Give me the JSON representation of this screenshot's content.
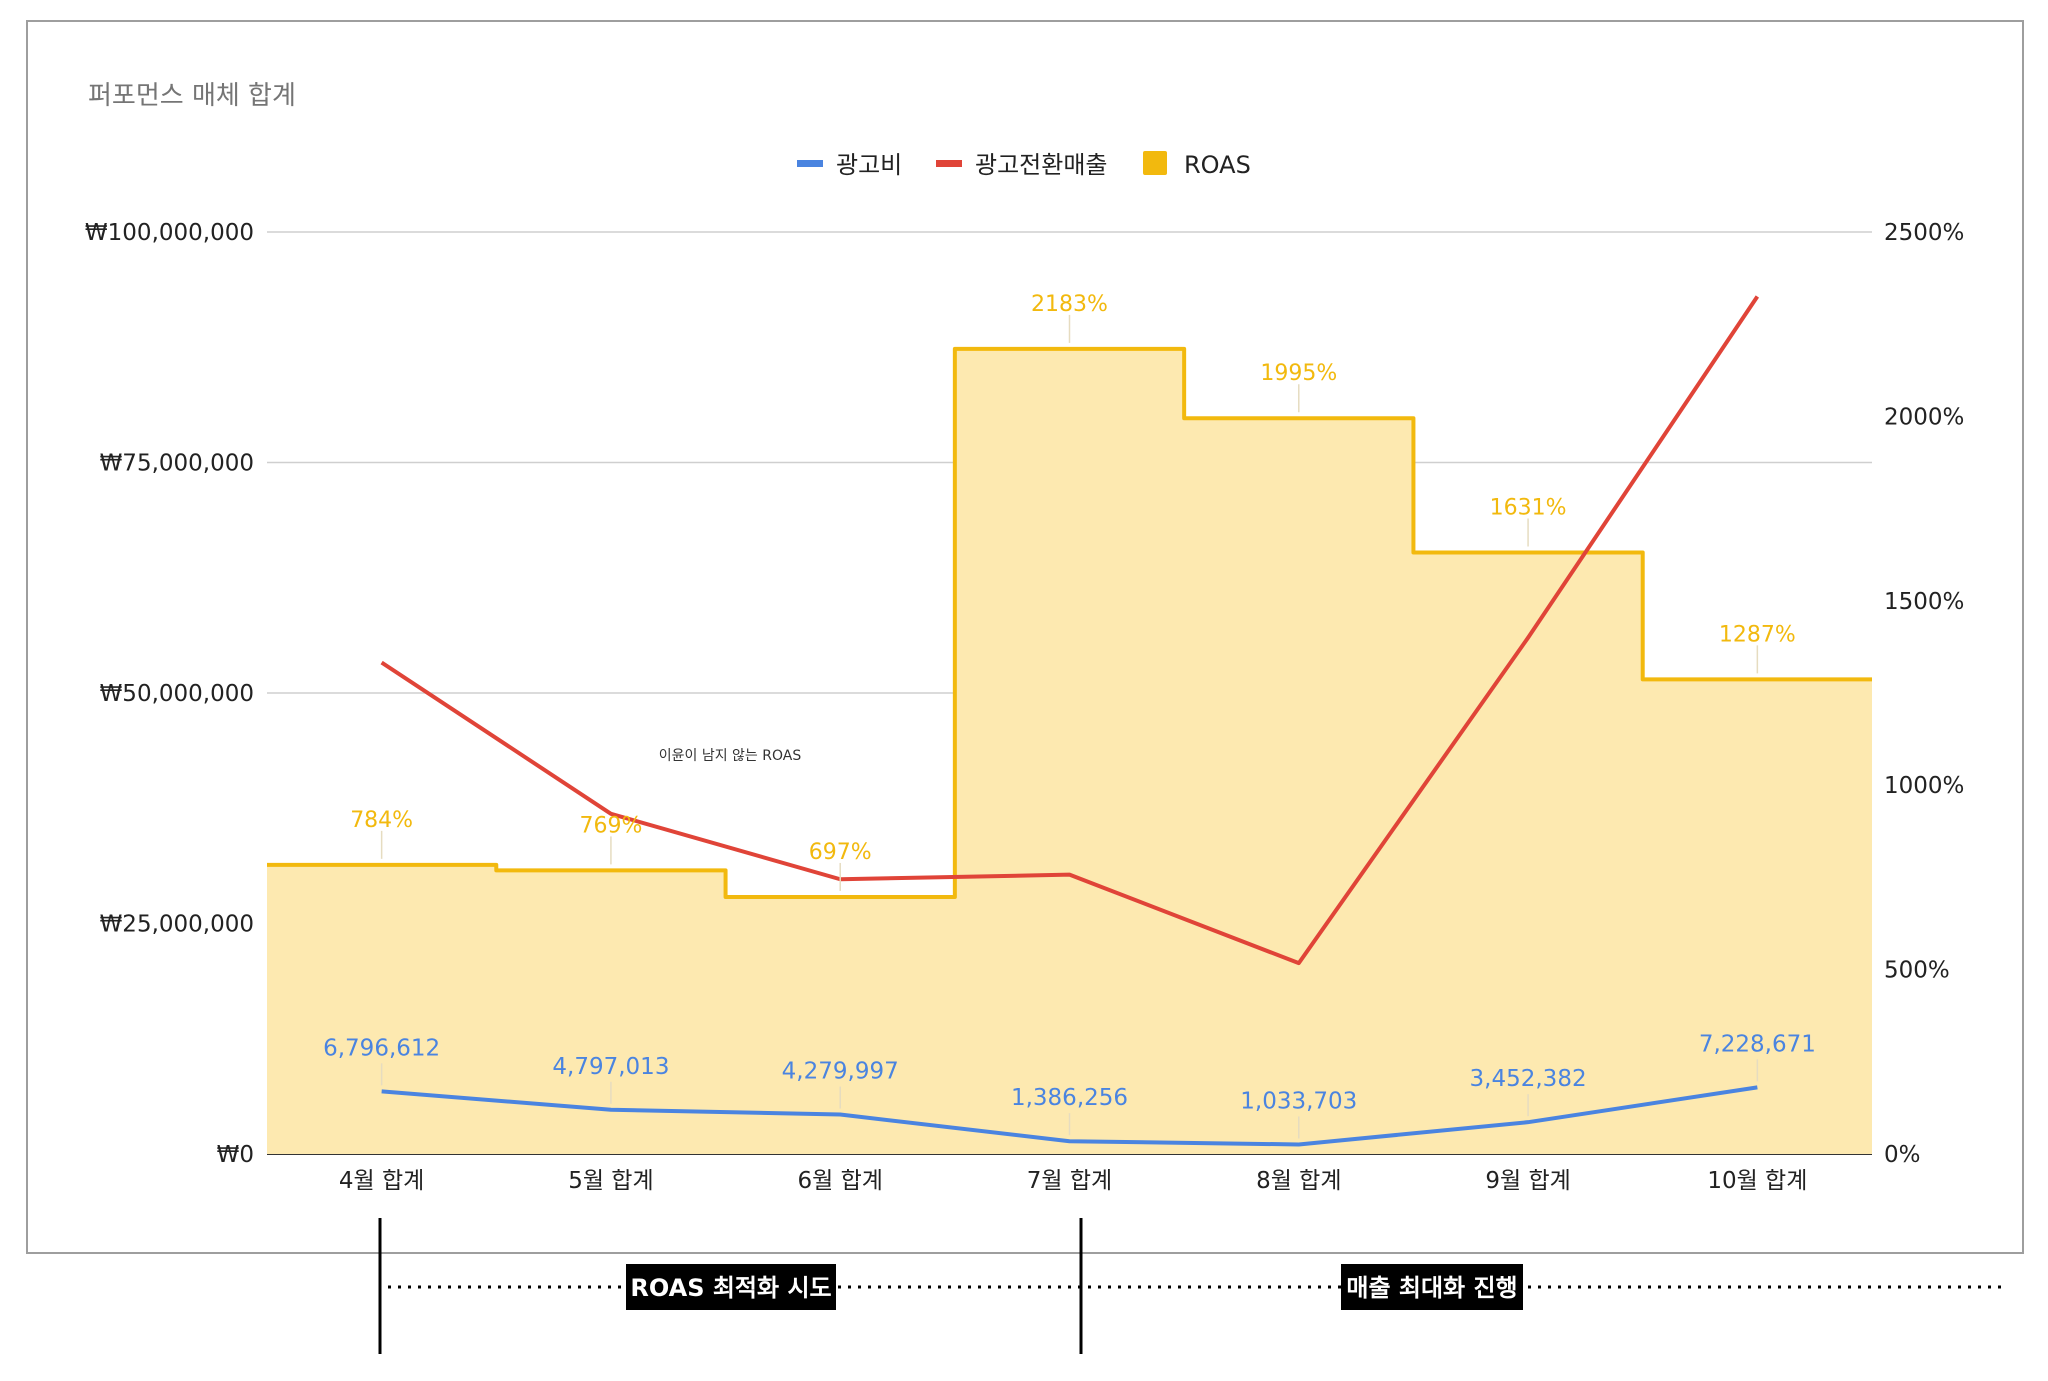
{
  "chart_data": {
    "type": "bar",
    "title": "퍼포먼스 매체 합계",
    "categories": [
      "4월 합계",
      "5월 합계",
      "6월 합계",
      "7월 합계",
      "8월 합계",
      "9월 합계",
      "10월 합계"
    ],
    "series": [
      {
        "name": "광고비",
        "axis": "left",
        "chart": "line",
        "color": "#4a84e0",
        "values": [
          6796612,
          4797013,
          4279997,
          1386256,
          1033703,
          3452382,
          7228671
        ],
        "labels": [
          "6,796,612",
          "4,797,013",
          "4,279,997",
          "1,386,256",
          "1,033,703",
          "3,452,382",
          "7,228,671"
        ]
      },
      {
        "name": "광고전환매출",
        "axis": "right",
        "chart": "line",
        "color": "#e04438",
        "values": [
          53300000,
          36900000,
          29800000,
          30300000,
          20700000,
          56000000,
          93000000
        ]
      },
      {
        "name": "ROAS",
        "axis": "right",
        "chart": "stepped-area",
        "color": "#f2b90e",
        "values": [
          784,
          769,
          697,
          2183,
          1995,
          1631,
          1287
        ],
        "labels": [
          "784%",
          "769%",
          "697%",
          "2183%",
          "1995%",
          "1631%",
          "1287%"
        ]
      }
    ],
    "y_left": {
      "range": [
        0,
        100000000
      ],
      "ticks": [
        "₩0",
        "₩25,000,000",
        "₩50,000,000",
        "₩75,000,000",
        "₩100,000,000"
      ]
    },
    "y_right": {
      "range": [
        0,
        2500
      ],
      "ticks": [
        "0%",
        "500%",
        "1000%",
        "1500%",
        "2000%",
        "2500%"
      ]
    },
    "legend": "top-center",
    "grid": true,
    "annotation": "이윤이 남지 않는 ROAS"
  },
  "phases": [
    {
      "label": "ROAS 최적화 시도"
    },
    {
      "label": "매출 최대화 진행"
    }
  ]
}
